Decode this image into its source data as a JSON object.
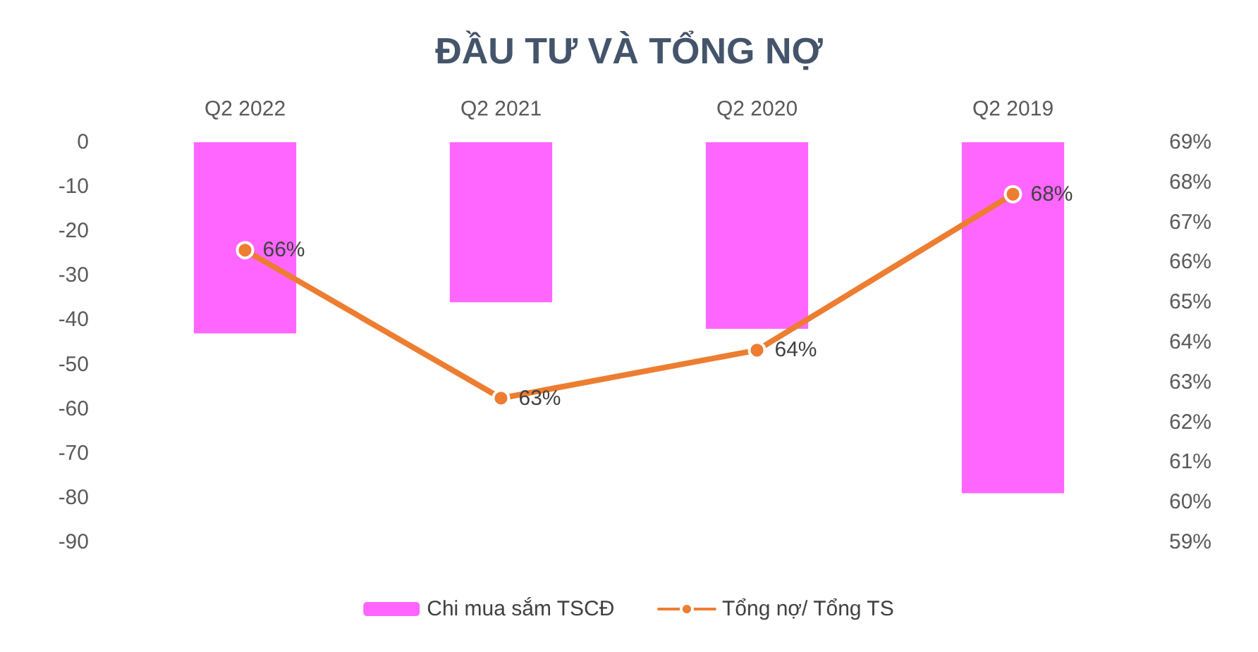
{
  "chart_data": {
    "type": "bar",
    "title": "ĐẦU TƯ VÀ TỔNG NỢ",
    "categories": [
      "Q2 2022",
      "Q2 2021",
      "Q2 2020",
      "Q2 2019"
    ],
    "series": [
      {
        "name": "Chi mua sắm TSCĐ",
        "color": "#ff66ff",
        "values": [
          -43,
          -36,
          -42,
          -79
        ]
      },
      {
        "name": "Tổng nợ/ Tổng TS",
        "type": "line",
        "axis": "y2",
        "color": "#ed7d31",
        "marker": "circle",
        "values": [
          66.3,
          62.6,
          63.8,
          67.7
        ],
        "value_labels": [
          "66%",
          "63%",
          "64%",
          "68%"
        ]
      }
    ],
    "ylim": [
      -90,
      0
    ],
    "yticks": [
      -90,
      -80,
      -70,
      -60,
      -50,
      -40,
      -30,
      -20,
      -10,
      0
    ],
    "y2lim": [
      59,
      69
    ],
    "y2ticks": [
      {
        "value": 59,
        "label": "59%"
      },
      {
        "value": 60,
        "label": "60%"
      },
      {
        "value": 61,
        "label": "61%"
      },
      {
        "value": 62,
        "label": "62%"
      },
      {
        "value": 63,
        "label": "63%"
      },
      {
        "value": 64,
        "label": "64%"
      },
      {
        "value": 65,
        "label": "65%"
      },
      {
        "value": 66,
        "label": "66%"
      },
      {
        "value": 67,
        "label": "67%"
      },
      {
        "value": 68,
        "label": "68%"
      },
      {
        "value": 69,
        "label": "69%"
      }
    ],
    "grid": false,
    "legend": "bottom"
  }
}
